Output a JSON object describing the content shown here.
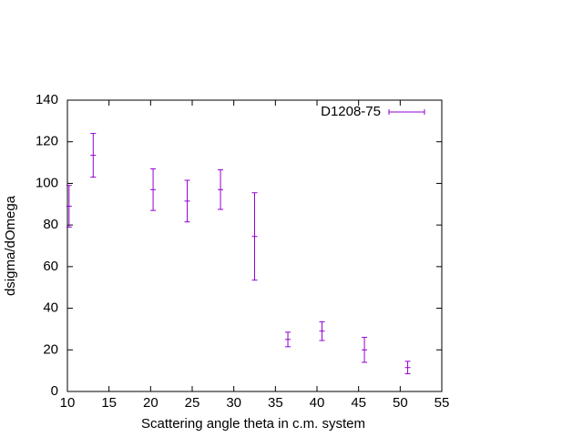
{
  "chart_data": {
    "type": "errorbar",
    "xlabel": "Scattering angle theta in c.m. system",
    "ylabel": "dsigma/dOmega",
    "xlim": [
      10,
      55
    ],
    "xticks": [
      10,
      15,
      20,
      25,
      30,
      35,
      40,
      45,
      50,
      55
    ],
    "ylim": [
      0,
      140
    ],
    "yticks": [
      0,
      20,
      40,
      60,
      80,
      100,
      120,
      140
    ],
    "legend": "top-right",
    "series": [
      {
        "name": "D1208-75",
        "color": "#9400d3",
        "x": [
          10.2,
          13.1,
          20.3,
          24.4,
          28.4,
          32.5,
          36.5,
          40.6,
          45.7,
          50.9
        ],
        "values": [
          89,
          113.5,
          97,
          91.5,
          97,
          74.5,
          25,
          29,
          20,
          11.5
        ],
        "errors": [
          10,
          10.5,
          10,
          10,
          9.5,
          21,
          3.5,
          4.5,
          6,
          3
        ]
      }
    ]
  }
}
